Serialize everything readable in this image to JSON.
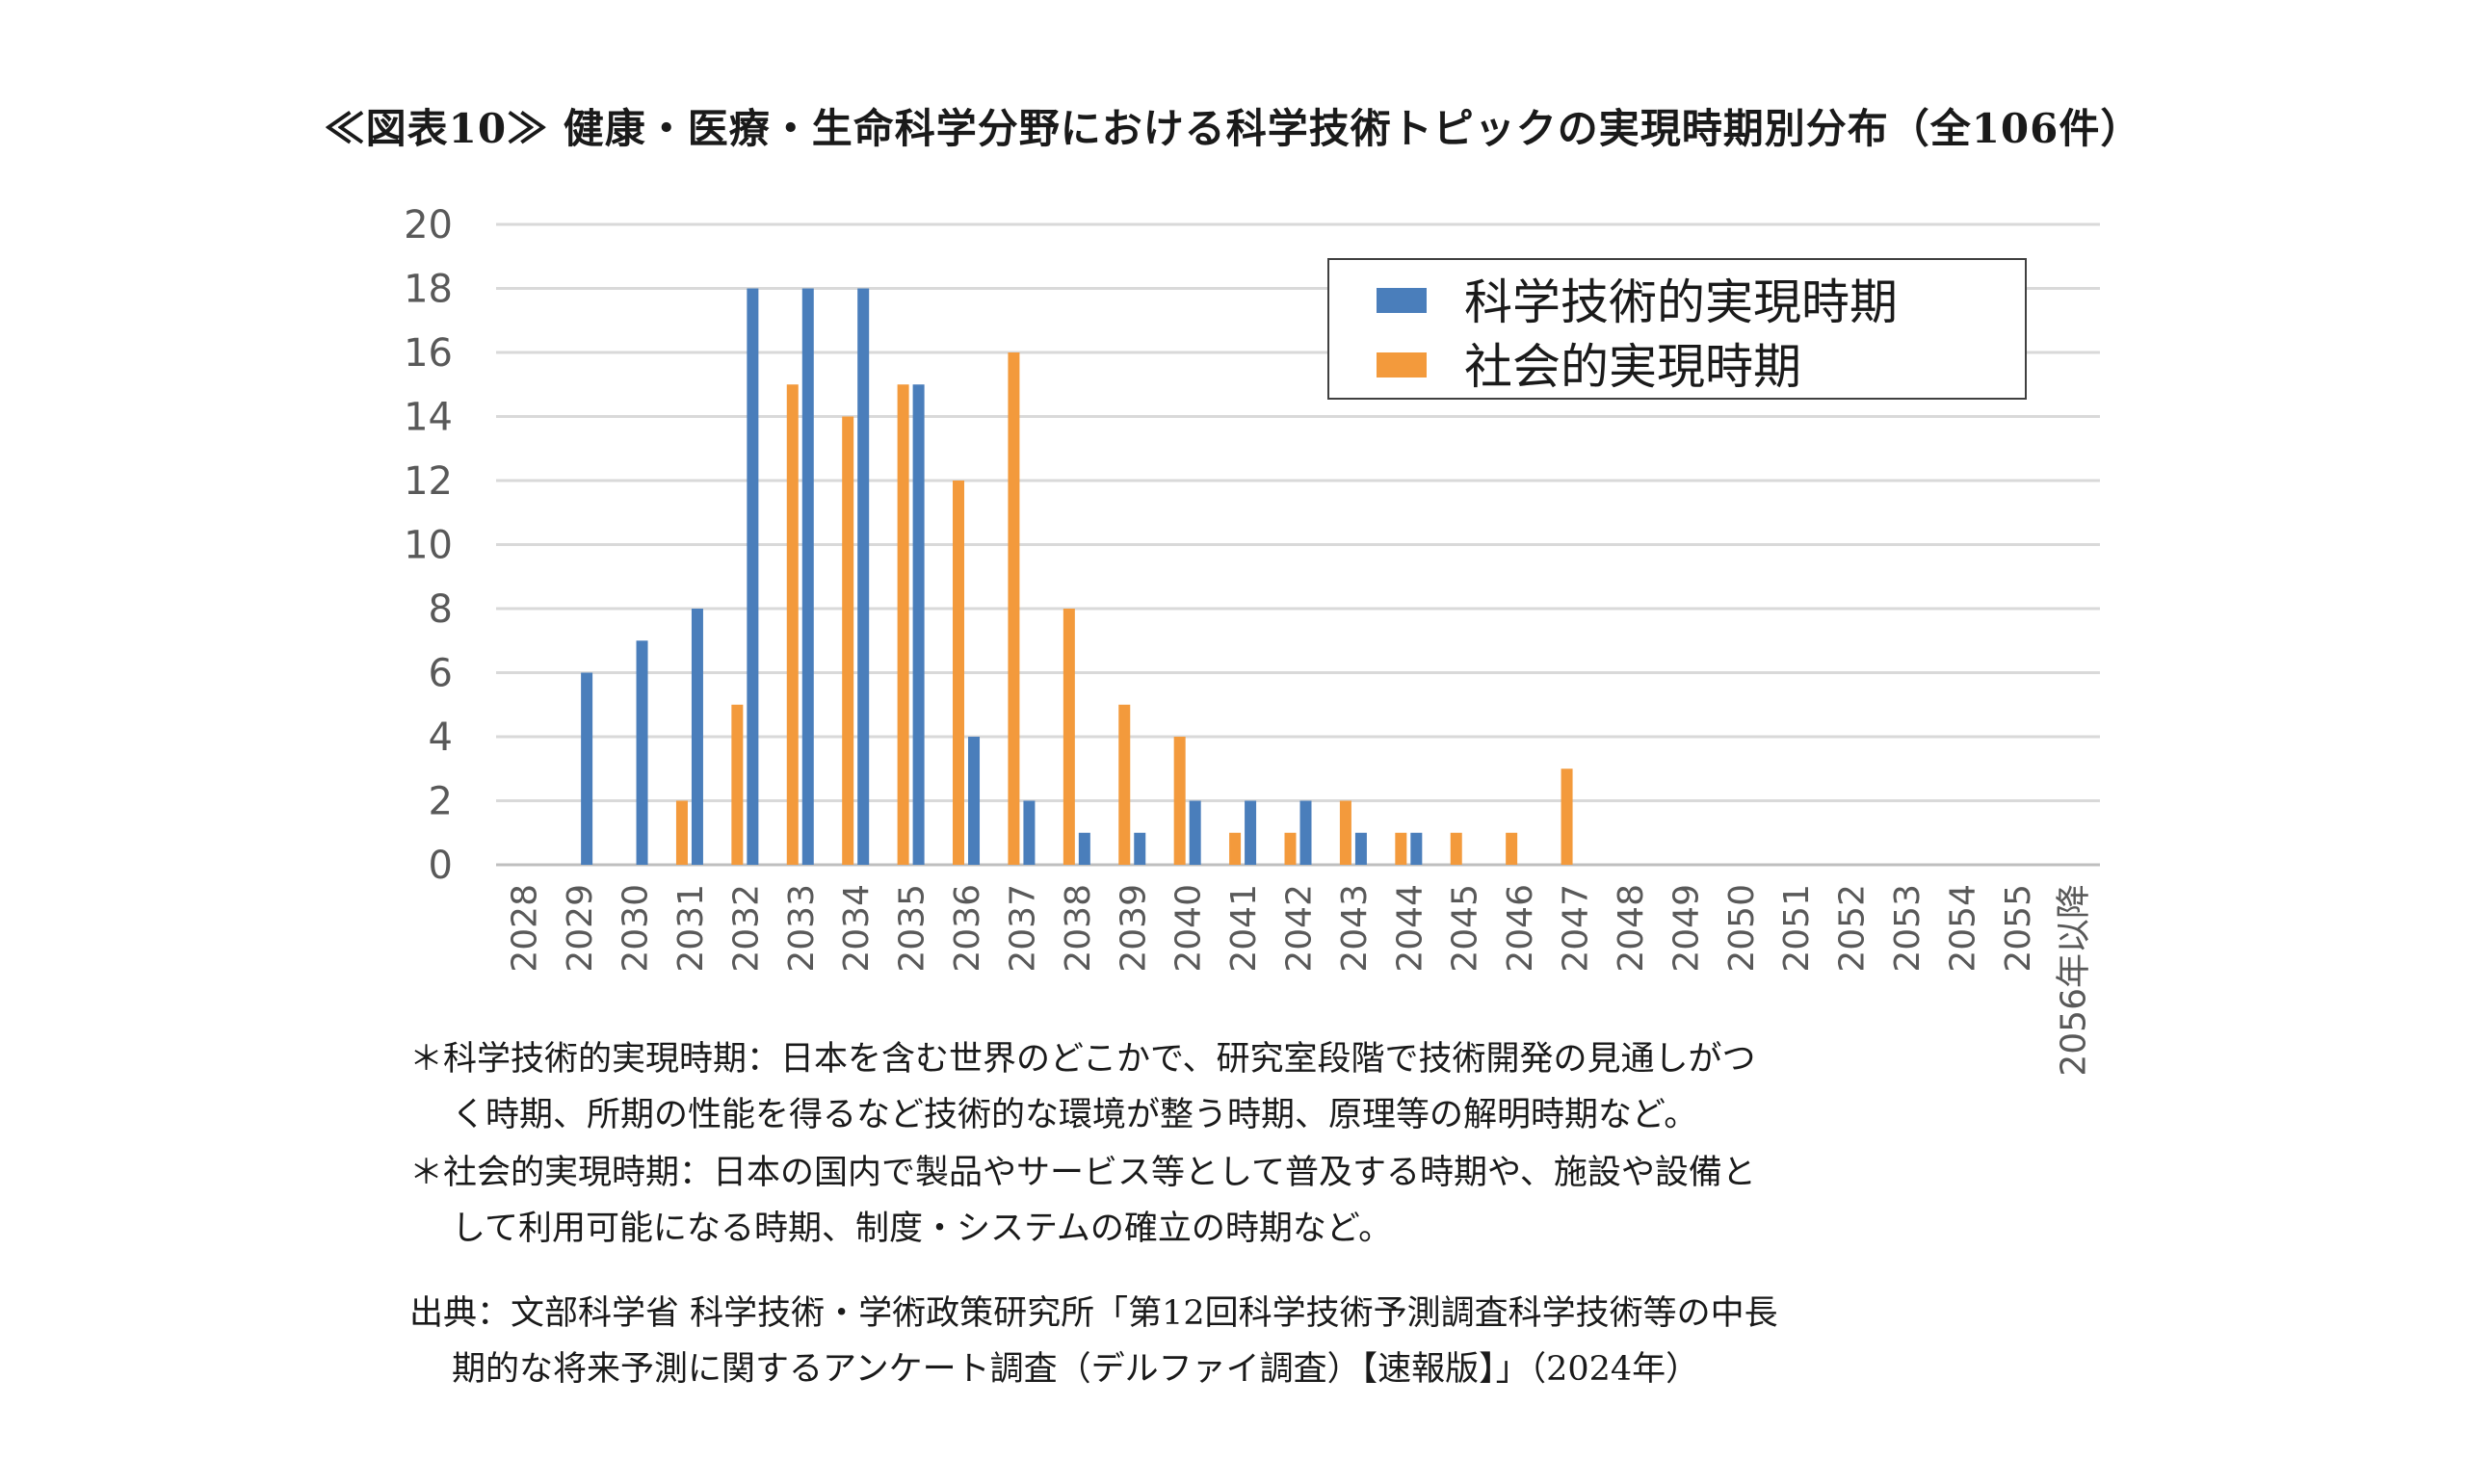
{
  "title": "≪図表10≫ 健康・医療・生命科学分野における科学技術トピックの実現時期別分布（全106件）",
  "chart_data": {
    "type": "bar",
    "categories": [
      "2028",
      "2029",
      "2030",
      "2031",
      "2032",
      "2033",
      "2034",
      "2035",
      "2036",
      "2037",
      "2038",
      "2039",
      "2040",
      "2041",
      "2042",
      "2043",
      "2044",
      "2045",
      "2046",
      "2047",
      "2048",
      "2049",
      "2050",
      "2051",
      "2052",
      "2053",
      "2054",
      "2055",
      "2056年以降"
    ],
    "series": [
      {
        "name": "科学技術的実現時期",
        "color": "#4a7ebb",
        "values": [
          0,
          6,
          7,
          8,
          18,
          18,
          18,
          15,
          4,
          2,
          1,
          1,
          2,
          2,
          2,
          1,
          1,
          0,
          0,
          0,
          0,
          0,
          0,
          0,
          0,
          0,
          0,
          0,
          0
        ]
      },
      {
        "name": "社会的実現時期",
        "color": "#f39a3c",
        "values": [
          0,
          0,
          0,
          2,
          5,
          15,
          14,
          15,
          12,
          16,
          8,
          5,
          4,
          1,
          1,
          2,
          1,
          1,
          1,
          3,
          0,
          0,
          0,
          0,
          0,
          0,
          0,
          0,
          0
        ]
      }
    ],
    "ylim": [
      0,
      20
    ],
    "yticks": [
      0,
      2,
      4,
      6,
      8,
      10,
      12,
      14,
      16,
      18,
      20
    ],
    "grid": true,
    "legend_position": "top-right"
  },
  "notes": {
    "science_1": "＊科学技術的実現時期：日本を含む世界のどこかで、研究室段階で技術開発の見通しがつ",
    "science_2": "く時期、所期の性能を得るなど技術的な環境が整う時期、原理等の解明時期など。",
    "social_1": "＊社会的実現時期：日本の国内で製品やサービス等として普及する時期や、施設や設備と",
    "social_2": "して利用可能になる時期、制度・システムの確立の時期など。",
    "source_1": "出典：文部科学省 科学技術・学術政策研究所「第12回科学技術予測調査科学技術等の中長",
    "source_2": "期的な将来予測に関するアンケート調査（デルファイ調査）【速報版】」（2024年）"
  }
}
